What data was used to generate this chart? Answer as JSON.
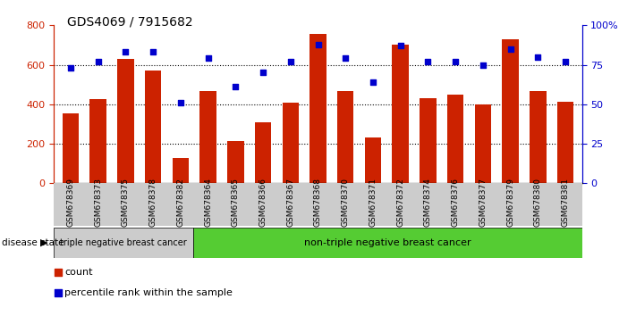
{
  "title": "GDS4069 / 7915682",
  "samples": [
    "GSM678369",
    "GSM678373",
    "GSM678375",
    "GSM678378",
    "GSM678382",
    "GSM678364",
    "GSM678365",
    "GSM678366",
    "GSM678367",
    "GSM678368",
    "GSM678370",
    "GSM678371",
    "GSM678372",
    "GSM678374",
    "GSM678376",
    "GSM678377",
    "GSM678379",
    "GSM678380",
    "GSM678381"
  ],
  "counts": [
    355,
    425,
    630,
    570,
    130,
    465,
    215,
    310,
    410,
    755,
    465,
    230,
    700,
    430,
    450,
    400,
    730,
    465,
    415
  ],
  "percentiles": [
    73,
    77,
    83,
    83,
    51,
    79,
    61,
    70,
    77,
    88,
    79,
    64,
    87,
    77,
    77,
    75,
    85,
    80,
    77
  ],
  "bar_color": "#cc2200",
  "dot_color": "#0000cc",
  "ylim_left": [
    0,
    800
  ],
  "ylim_right": [
    0,
    100
  ],
  "yticks_left": [
    0,
    200,
    400,
    600,
    800
  ],
  "yticks_right": [
    0,
    25,
    50,
    75,
    100
  ],
  "ytick_labels_right": [
    "0",
    "25",
    "50",
    "75",
    "100%"
  ],
  "group1_label": "triple negative breast cancer",
  "group2_label": "non-triple negative breast cancer",
  "group1_count": 5,
  "legend_count_label": "count",
  "legend_pct_label": "percentile rank within the sample",
  "disease_state_label": "disease state",
  "background_color": "#ffffff",
  "group1_bg": "#cccccc",
  "group2_bg": "#55cc33",
  "tick_area_bg": "#cccccc"
}
